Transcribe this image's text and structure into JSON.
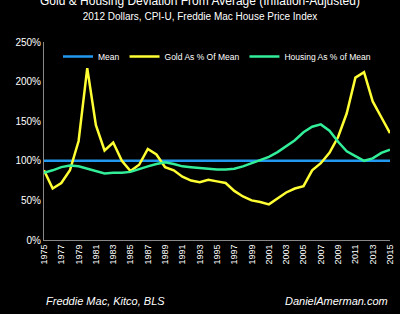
{
  "chart_data": {
    "type": "line",
    "title": "Gold & Housing Deviation From Average (Inflation-Adjusted)",
    "subtitle": "2012 Dollars, CPI-U, Freddie Mac House Price Index",
    "x": [
      1975,
      1976,
      1977,
      1978,
      1979,
      1980,
      1981,
      1982,
      1983,
      1984,
      1985,
      1986,
      1987,
      1988,
      1989,
      1990,
      1991,
      1992,
      1993,
      1994,
      1995,
      1996,
      1997,
      1998,
      1999,
      2000,
      2001,
      2002,
      2003,
      2004,
      2005,
      2006,
      2007,
      2008,
      2009,
      2010,
      2011,
      2012,
      2013,
      2014,
      2015
    ],
    "series": [
      {
        "name": "Mean",
        "color": "#2299ee",
        "values": [
          100,
          100,
          100,
          100,
          100,
          100,
          100,
          100,
          100,
          100,
          100,
          100,
          100,
          100,
          100,
          100,
          100,
          100,
          100,
          100,
          100,
          100,
          100,
          100,
          100,
          100,
          100,
          100,
          100,
          100,
          100,
          100,
          100,
          100,
          100,
          100,
          100,
          100,
          100,
          100,
          100
        ]
      },
      {
        "name": "Gold As % Of Mean",
        "color": "#ffff33",
        "values": [
          88,
          65,
          72,
          88,
          125,
          217,
          145,
          113,
          123,
          100,
          87,
          95,
          115,
          108,
          92,
          88,
          80,
          75,
          73,
          76,
          74,
          72,
          62,
          55,
          50,
          48,
          45,
          52,
          60,
          65,
          68,
          88,
          97,
          110,
          130,
          160,
          205,
          212,
          175,
          155,
          135
        ]
      },
      {
        "name": "Housing As % of Mean",
        "color": "#33ee99",
        "values": [
          85,
          88,
          92,
          94,
          93,
          90,
          87,
          84,
          85,
          85,
          86,
          90,
          93,
          96,
          98,
          96,
          93,
          92,
          91,
          90,
          89,
          89,
          90,
          93,
          97,
          101,
          105,
          111,
          118,
          126,
          136,
          143,
          146,
          138,
          124,
          112,
          106,
          100,
          103,
          110,
          114
        ]
      }
    ],
    "xlim": [
      1975,
      2015
    ],
    "xticks": [
      1975,
      1977,
      1979,
      1981,
      1983,
      1985,
      1987,
      1989,
      1991,
      1993,
      1995,
      1997,
      1999,
      2001,
      2003,
      2005,
      2007,
      2009,
      2011,
      2013,
      2015
    ],
    "ylim": [
      0,
      250
    ],
    "yticks": [
      {
        "value": 0,
        "label": "0%"
      },
      {
        "value": 50,
        "label": "50%"
      },
      {
        "value": 100,
        "label": "100%"
      },
      {
        "value": 150,
        "label": "150%"
      },
      {
        "value": 200,
        "label": "200%"
      },
      {
        "value": 250,
        "label": "250%"
      }
    ],
    "grid": false,
    "legend": "top",
    "annotations": [
      {
        "text": "Freddie Mac, Kitco, BLS"
      },
      {
        "text": "DanielAmerman.com"
      }
    ]
  }
}
